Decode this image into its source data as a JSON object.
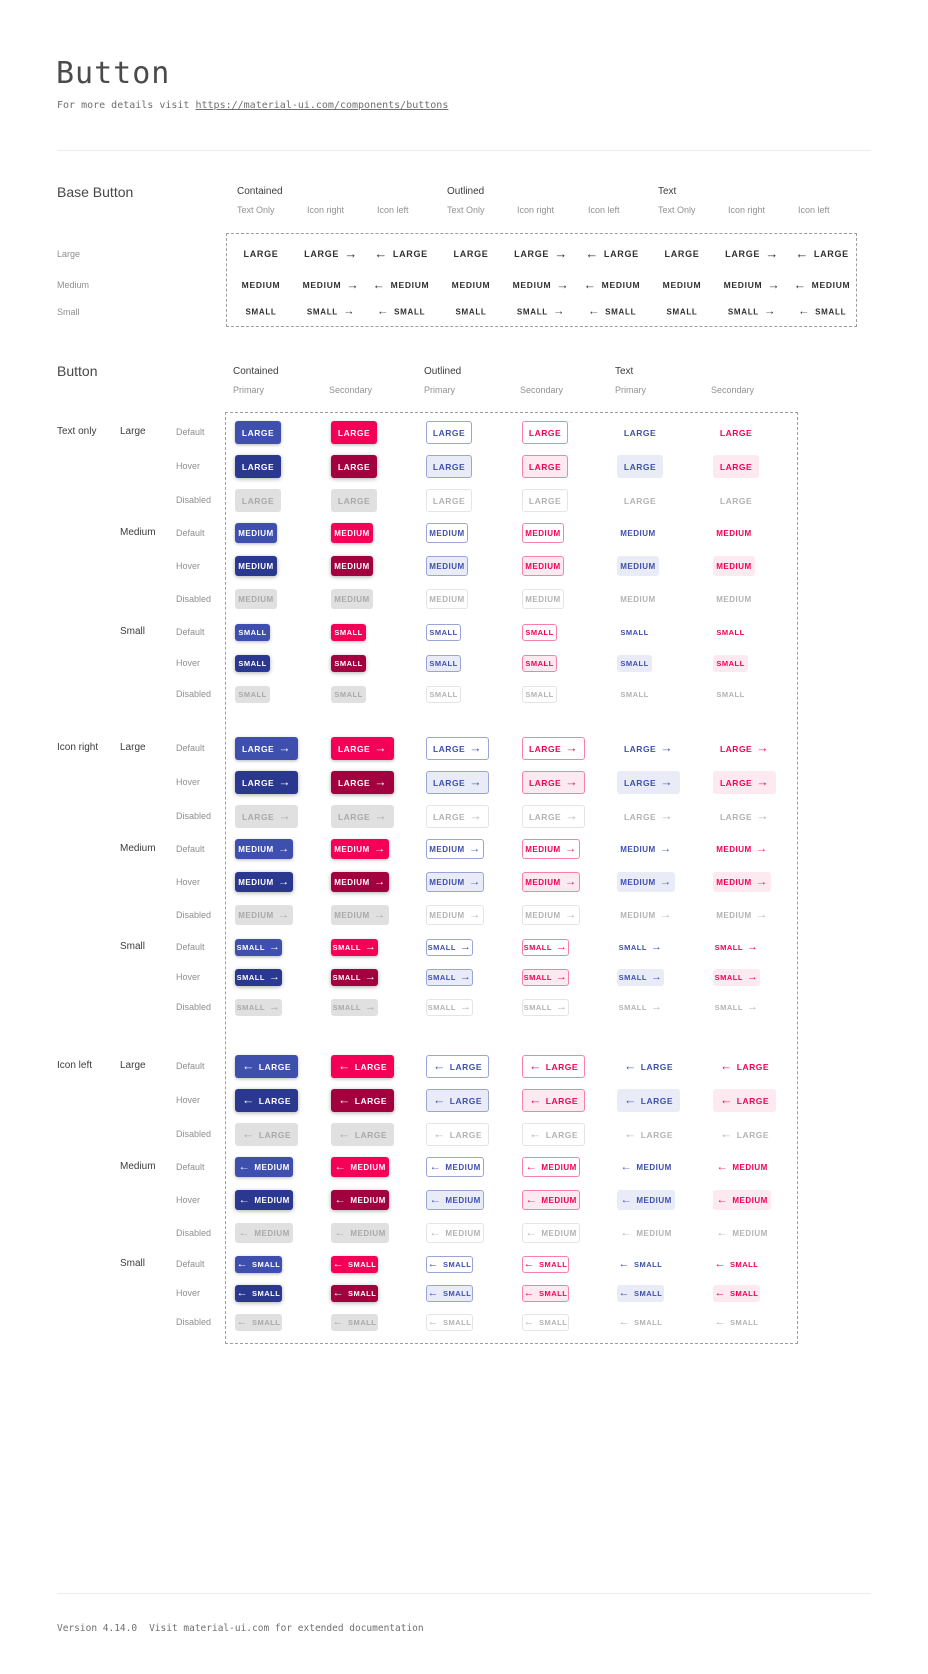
{
  "page": {
    "title": "Button",
    "subtitle_prefix": "For more details visit ",
    "link_text": "https://material-ui.com/components/buttons"
  },
  "icons": {
    "arrow_right": "→",
    "arrow_left": "←"
  },
  "base_section": {
    "title": "Base Button",
    "group_headers": [
      "Contained",
      "Outlined",
      "Text"
    ],
    "subcolumn_headers": [
      "Text Only",
      "Icon right",
      "Icon left"
    ],
    "row_labels": [
      "Large",
      "Medium",
      "Small"
    ],
    "button_texts": [
      "LARGE",
      "MEDIUM",
      "SMALL"
    ]
  },
  "button_section": {
    "title": "Button",
    "group_headers": [
      "Contained",
      "Outlined",
      "Text"
    ],
    "subcolumn_headers": [
      "Primary",
      "Secondary"
    ],
    "variant_labels": [
      "Text only",
      "Icon right",
      "Icon left"
    ],
    "size_labels": [
      "Large",
      "Medium",
      "Small"
    ],
    "state_labels": [
      "Default",
      "Hover",
      "Disabled"
    ],
    "button_texts": [
      "LARGE",
      "MEDIUM",
      "SMALL"
    ]
  },
  "colors": {
    "primary": "#3e4fae",
    "primary_hover": "#2a388f",
    "secondary": "#f50057",
    "secondary_hover": "#a3003f",
    "disabled_bg": "#e0e0e0",
    "disabled_text": "#a9a9a9",
    "primary_border": "#9aa5d6",
    "secondary_border": "#f980ab",
    "primary_tint": "#e9ecf7",
    "secondary_tint": "#fdeaf1",
    "outlined_disabled_border": "#e4e4e4",
    "outlined_disabled_text": "#b3b3b3"
  },
  "footer": {
    "version": "Version 4.14.0",
    "note": "Visit material-ui.com for extended documentation"
  }
}
